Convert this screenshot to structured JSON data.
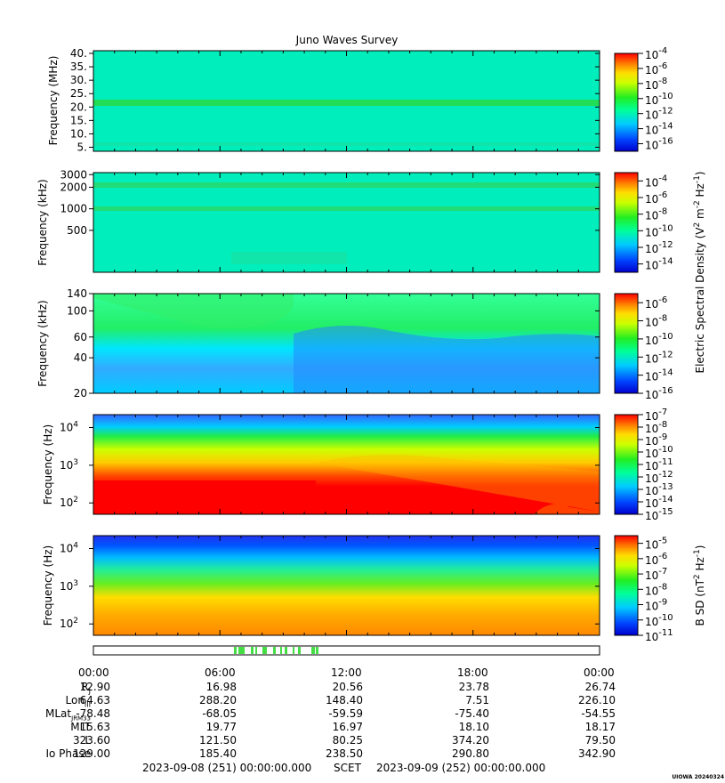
{
  "title": "Juno Waves Survey",
  "chart_data": [
    {
      "type": "heatmap",
      "ylabel": "Frequency (MHz)",
      "yscale": "linear",
      "ylim": [
        3.5,
        41
      ],
      "yticks": [
        "5.",
        "10.",
        "15.",
        "20.",
        "25.",
        "30.",
        "35.",
        "40."
      ],
      "ytick_values": [
        5,
        10,
        15,
        20,
        25,
        30,
        35,
        40
      ],
      "colorbar": {
        "ticks": [
          -4,
          -6,
          -8,
          -10,
          -12,
          -14,
          -16
        ],
        "range": [
          -17,
          -4
        ],
        "label": ""
      },
      "description_level": "uniform background ~1e-13 with enhanced band near 21 MHz"
    },
    {
      "type": "heatmap",
      "ylabel": "Frequency (kHz)",
      "yscale": "log",
      "ylim": [
        130,
        3200
      ],
      "yticks": [
        "3000",
        "2000",
        "1000",
        "500"
      ],
      "ytick_values": [
        3000,
        2000,
        1000,
        500
      ],
      "colorbar": {
        "ticks": [
          -4,
          -6,
          -8,
          -10,
          -12,
          -14
        ],
        "range": [
          -15,
          -3
        ],
        "label": ""
      }
    },
    {
      "type": "heatmap",
      "ylabel": "Frequency (kHz)",
      "yscale": "log",
      "ylim": [
        20,
        140
      ],
      "yticks": [
        "140",
        "100",
        "60",
        "40",
        "20"
      ],
      "ytick_values": [
        140,
        100,
        60,
        40,
        20
      ],
      "colorbar": {
        "ticks": [
          -6,
          -8,
          -10,
          -12,
          -14,
          -16
        ],
        "range": [
          -16,
          -5
        ],
        "label": ""
      }
    },
    {
      "type": "heatmap",
      "ylabel": "Frequency (Hz)",
      "yscale": "log",
      "ylim": [
        50,
        22000
      ],
      "yticks": [
        "10",
        "10",
        "10"
      ],
      "ytick_exps": [
        "4",
        "3",
        "2"
      ],
      "ytick_values": [
        10000,
        1000,
        100
      ],
      "colorbar": {
        "ticks": [
          -7,
          -8,
          -9,
          -10,
          -11,
          -12,
          -13,
          -14,
          -15
        ],
        "range": [
          -15,
          -7
        ],
        "label": ""
      }
    },
    {
      "type": "heatmap",
      "ylabel": "Frequency (Hz)",
      "yscale": "log",
      "ylim": [
        50,
        22000
      ],
      "yticks": [
        "10",
        "10",
        "10"
      ],
      "ytick_exps": [
        "4",
        "3",
        "2"
      ],
      "ytick_values": [
        10000,
        1000,
        100
      ],
      "colorbar": {
        "ticks": [
          -5,
          -6,
          -7,
          -8,
          -9,
          -10,
          -11
        ],
        "range": [
          -11,
          -4.5
        ],
        "label": "B SD (nT",
        "label_tail": " Hz",
        "label_exp1": "2",
        "label_exp2": "-1",
        "label_close": ")"
      }
    }
  ],
  "shared_colorbar_label": {
    "text": "Electric Spectral Density (V",
    "exp1": "2",
    "mid": " m",
    "exp2": "-2",
    "mid2": " Hz",
    "exp3": "-1",
    "close": ")"
  },
  "time_ticks": [
    "00:00",
    "06:00",
    "12:00",
    "18:00",
    "00:00"
  ],
  "ephemeris": {
    "labels": [
      "R",
      "Lon",
      "MLat",
      "MLT",
      "L",
      "Io Phase"
    ],
    "label_subs": [
      "J",
      "III",
      "JRM33",
      "",
      "",
      ""
    ],
    "rows": [
      [
        "12.90",
        "16.98",
        "20.56",
        "23.78",
        "26.74"
      ],
      [
        "64.63",
        "288.20",
        "148.40",
        "7.51",
        "226.10"
      ],
      [
        "-78.48",
        "-68.05",
        "-59.59",
        "-75.40",
        "-54.55"
      ],
      [
        "15.63",
        "19.77",
        "16.97",
        "18.10",
        "18.17"
      ],
      [
        "323.60",
        "121.50",
        "80.25",
        "374.20",
        "79.50"
      ],
      [
        "129.00",
        "185.40",
        "238.50",
        "290.80",
        "342.90"
      ]
    ]
  },
  "footer": {
    "start": "2023-09-08 (251) 00:00:00.000",
    "scet": "SCET",
    "end": "2023-09-09 (252) 00:00:00.000",
    "stamp": "UIOWA 20240324"
  },
  "mode_bar_color": "#44dd44"
}
